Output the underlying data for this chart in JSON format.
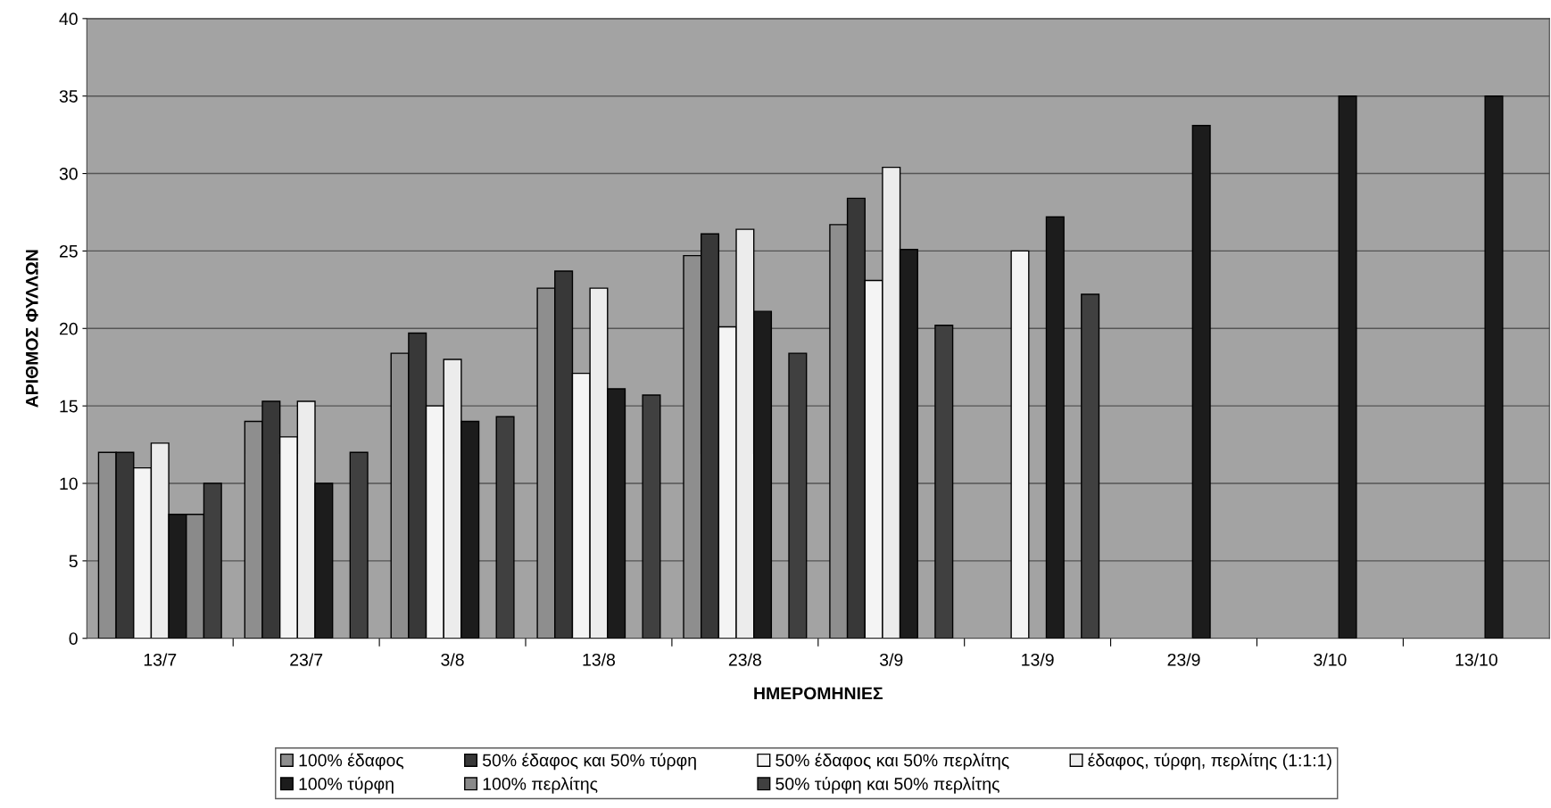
{
  "chart_data": {
    "type": "bar",
    "xlabel": "ΗΜΕΡΟΜΗΝΙΕΣ",
    "ylabel": "ΑΡΙΘΜΟΣ ΦΥΛΛΩΝ",
    "categories": [
      "13/7",
      "23/7",
      "3/8",
      "13/8",
      "23/8",
      "3/9",
      "13/9",
      "23/9",
      "3/10",
      "13/10"
    ],
    "series": [
      {
        "name": "100% έδαφος",
        "color": "#8e8e8e",
        "values": [
          12,
          14,
          18.4,
          22.6,
          24.7,
          26.7,
          null,
          null,
          null,
          null
        ]
      },
      {
        "name": "50% έδαφος και 50% τύρφη",
        "color": "#383838",
        "values": [
          12,
          15.3,
          19.7,
          23.7,
          26.1,
          28.4,
          null,
          null,
          null,
          null
        ]
      },
      {
        "name": "50% έδαφος και 50% περλίτης",
        "color": "#f4f4f4",
        "values": [
          11,
          13,
          15,
          17.1,
          20.1,
          23.1,
          25,
          null,
          null,
          null
        ]
      },
      {
        "name": "έδαφος, τύρφη, περλίτης (1:1:1)",
        "color": "#ececec",
        "values": [
          12.6,
          15.3,
          18,
          22.6,
          26.4,
          30.4,
          null,
          null,
          null,
          null
        ]
      },
      {
        "name": "100% τύρφη",
        "color": "#1c1c1c",
        "values": [
          8,
          10,
          14,
          16.1,
          21.1,
          25.1,
          27.2,
          33.1,
          35,
          35
        ]
      },
      {
        "name": "100% περλίτης",
        "color": "#8a8a8a",
        "values": [
          8,
          null,
          null,
          null,
          null,
          null,
          null,
          null,
          null,
          null
        ]
      },
      {
        "name": "50% τύρφη και 50% περλίτης",
        "color": "#404040",
        "values": [
          10,
          12,
          14.3,
          15.7,
          18.4,
          20.2,
          22.2,
          null,
          null,
          null
        ]
      }
    ],
    "ylim": [
      0,
      40
    ],
    "yticks": [
      0,
      5,
      10,
      15,
      20,
      25,
      30,
      35,
      40
    ],
    "grid": "y",
    "legend": "bottom"
  }
}
